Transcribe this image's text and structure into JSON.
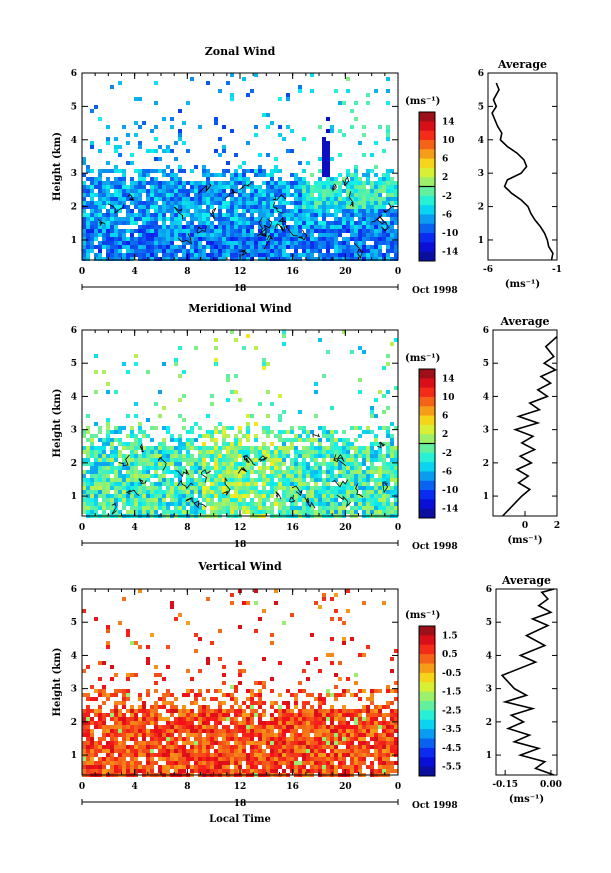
{
  "figure": {
    "month_label": "Oct 1998",
    "x_label": "Local Time",
    "date_marker": "18",
    "unit_label": "(ms⁻¹)"
  },
  "chart_data": [
    {
      "type": "heatmap",
      "title": "Zonal Wind",
      "xlabel": "",
      "ylabel": "Height (km)",
      "xlim": [
        0,
        24
      ],
      "ylim": [
        0.4,
        6
      ],
      "x_ticks": [
        "0",
        "4",
        "8",
        "12",
        "16",
        "20",
        "0"
      ],
      "y_ticks": [
        "1",
        "2",
        "3",
        "4",
        "5",
        "6"
      ],
      "colorbar": {
        "label": "(ms⁻¹)",
        "range": [
          -14,
          14
        ],
        "ticks": [
          "14",
          "10",
          "6",
          "2",
          "-2",
          "-6",
          "-10",
          "-14"
        ]
      },
      "profile": {
        "title": "Average",
        "xlabel": "(ms⁻¹)",
        "xlim": [
          -6,
          -1
        ],
        "x_ticks": [
          "-6",
          "-1"
        ],
        "y_ticks": [
          "1",
          "2",
          "3",
          "4",
          "5",
          "6"
        ],
        "x": [
          -1.4,
          -1.3,
          -1.6,
          -1.7,
          -1.9,
          -2.2,
          -2.6,
          -2.9,
          -3.1,
          -3.6,
          -4.3,
          -4.8,
          -4.6,
          -3.6,
          -3.2,
          -3.4,
          -3.9,
          -4.6,
          -5.1,
          -5.0,
          -5.3,
          -5.5,
          -5.7,
          -5.4,
          -5.6,
          -5.2,
          -5.4
        ],
        "y": [
          0.4,
          0.6,
          0.8,
          1.0,
          1.2,
          1.4,
          1.6,
          1.8,
          2.0,
          2.2,
          2.4,
          2.6,
          2.8,
          3.0,
          3.2,
          3.4,
          3.6,
          3.8,
          4.0,
          4.2,
          4.4,
          4.6,
          4.8,
          5.0,
          5.2,
          5.5,
          5.7
        ]
      }
    },
    {
      "type": "heatmap",
      "title": "Meridional Wind",
      "xlabel": "",
      "ylabel": "Height (km)",
      "xlim": [
        0,
        24
      ],
      "ylim": [
        0.4,
        6
      ],
      "x_ticks": [
        "0",
        "4",
        "8",
        "12",
        "16",
        "20",
        "0"
      ],
      "y_ticks": [
        "1",
        "2",
        "3",
        "4",
        "5",
        "6"
      ],
      "colorbar": {
        "label": "(ms⁻¹)",
        "range": [
          -14,
          14
        ],
        "ticks": [
          "14",
          "10",
          "6",
          "2",
          "-2",
          "-6",
          "-10",
          "-14"
        ]
      },
      "profile": {
        "title": "Average",
        "xlabel": "(ms⁻¹)",
        "xlim": [
          -2,
          2
        ],
        "x_ticks": [
          "0",
          "2"
        ],
        "y_ticks": [
          "1",
          "2",
          "3",
          "4",
          "5",
          "6"
        ],
        "x": [
          -1.4,
          -1.0,
          -0.6,
          -0.2,
          0.3,
          -0.4,
          0.2,
          -0.5,
          0.4,
          -0.3,
          0.6,
          -0.2,
          0.5,
          -0.6,
          0.8,
          -0.4,
          0.9,
          0.3,
          1.4,
          0.8,
          1.6,
          1.0,
          1.9,
          1.2,
          1.8,
          1.3,
          2.0
        ],
        "y": [
          0.4,
          0.6,
          0.8,
          1.0,
          1.2,
          1.4,
          1.6,
          1.8,
          2.0,
          2.2,
          2.4,
          2.6,
          2.8,
          3.0,
          3.2,
          3.4,
          3.6,
          3.8,
          4.0,
          4.2,
          4.4,
          4.6,
          4.8,
          5.0,
          5.2,
          5.5,
          5.8
        ]
      }
    },
    {
      "type": "heatmap",
      "title": "Vertical Wind",
      "xlabel": "Local Time",
      "ylabel": "Height (km)",
      "xlim": [
        0,
        24
      ],
      "ylim": [
        0.4,
        6
      ],
      "x_ticks": [
        "0",
        "4",
        "8",
        "12",
        "16",
        "20",
        "0"
      ],
      "y_ticks": [
        "1",
        "2",
        "3",
        "4",
        "5",
        "6"
      ],
      "colorbar": {
        "label": "(ms⁻¹)",
        "range": [
          -6,
          2
        ],
        "ticks": [
          "1.5",
          "0.5",
          "-0.5",
          "-1.5",
          "-2.5",
          "-3.5",
          "-4.5",
          "-5.5"
        ]
      },
      "profile": {
        "title": "Average",
        "xlabel": "(ms⁻¹)",
        "xlim": [
          -0.18,
          0.02
        ],
        "x_ticks": [
          "-0.15",
          "0.00"
        ],
        "y_ticks": [
          "1",
          "2",
          "3",
          "4",
          "5",
          "6"
        ],
        "x": [
          0.01,
          -0.05,
          -0.02,
          -0.1,
          -0.04,
          -0.12,
          -0.07,
          -0.14,
          -0.09,
          -0.13,
          -0.06,
          -0.15,
          -0.08,
          -0.12,
          -0.16,
          -0.05,
          -0.1,
          -0.02,
          -0.08,
          -0.01,
          -0.06,
          0.0,
          -0.04,
          -0.01,
          -0.03,
          0.01
        ],
        "y": [
          0.4,
          0.6,
          0.8,
          1.0,
          1.2,
          1.4,
          1.6,
          1.8,
          2.0,
          2.2,
          2.4,
          2.6,
          2.8,
          3.0,
          3.4,
          3.8,
          4.0,
          4.3,
          4.6,
          4.9,
          5.1,
          5.3,
          5.5,
          5.7,
          5.9,
          6.0
        ]
      }
    }
  ]
}
